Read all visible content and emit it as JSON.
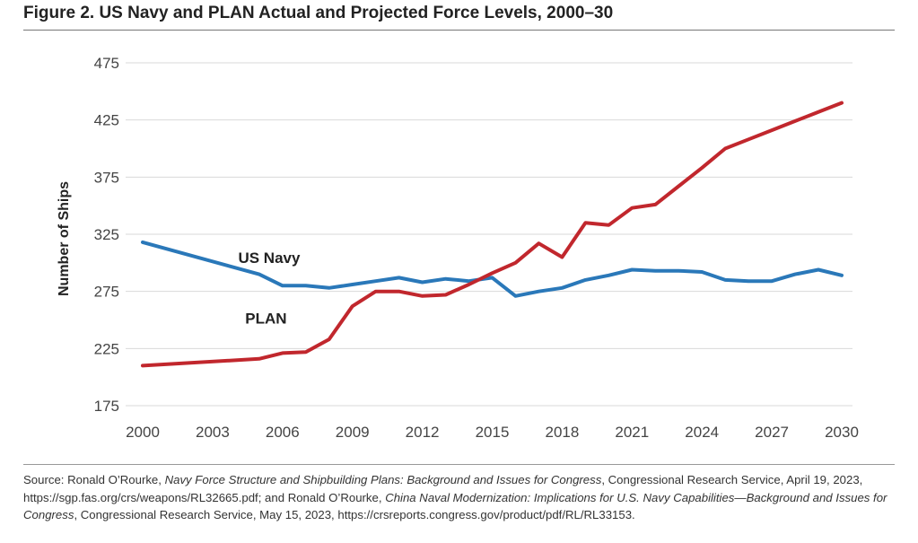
{
  "figure": {
    "title": "Figure 2. US Navy and PLAN Actual and Projected Force Levels, 2000–30"
  },
  "chart_data": {
    "type": "line",
    "title": "Figure 2. US Navy and PLAN Actual and Projected Force Levels, 2000–30",
    "xlabel": "",
    "ylabel": "Number of Ships",
    "x": [
      2000,
      2005,
      2006,
      2007,
      2008,
      2009,
      2010,
      2011,
      2012,
      2013,
      2014,
      2015,
      2016,
      2017,
      2018,
      2019,
      2020,
      2021,
      2022,
      2023,
      2024,
      2025,
      2026,
      2027,
      2028,
      2029,
      2030
    ],
    "xlim": [
      2000,
      2030
    ],
    "ylim": [
      175,
      475
    ],
    "x_ticks": [
      2000,
      2003,
      2006,
      2009,
      2012,
      2015,
      2018,
      2021,
      2024,
      2027,
      2030
    ],
    "y_ticks": [
      175,
      225,
      275,
      325,
      375,
      425,
      475
    ],
    "grid": "horizontal",
    "series": [
      {
        "name": "US Navy",
        "color": "#2a78b9",
        "values": [
          318,
          290,
          280,
          280,
          278,
          281,
          284,
          287,
          283,
          286,
          284,
          287,
          271,
          275,
          278,
          285,
          289,
          294,
          293,
          293,
          292,
          285,
          284,
          284,
          290,
          294,
          289
        ]
      },
      {
        "name": "PLAN",
        "color": "#c1272d",
        "values": [
          210,
          216,
          221,
          222,
          233,
          262,
          275,
          275,
          271,
          272,
          281,
          291,
          300,
          317,
          305,
          335,
          333,
          348,
          351,
          367,
          383,
          400,
          408,
          416,
          424,
          432,
          440
        ]
      }
    ],
    "annotations": [
      {
        "text": "US Navy",
        "series": "US Navy"
      },
      {
        "text": "PLAN",
        "series": "PLAN"
      }
    ]
  },
  "source": {
    "prefix": "Source: Ronald O’Rourke, ",
    "title1": "Navy Force Structure and Shipbuilding Plans: Background and Issues for Congress",
    "middle": ", Congressional Research Service, April 19, 2023, https://sgp.fas.org/crs/weapons/RL32665.pdf; and Ronald O’Rourke, ",
    "title2": "China Naval Modernization: Implications for U.S. Navy Capabilities—Background and Issues for Congress",
    "suffix": ", Congressional Research Service, May 15, 2023, https://crsreports.congress.gov/product/pdf/RL/RL33153."
  }
}
